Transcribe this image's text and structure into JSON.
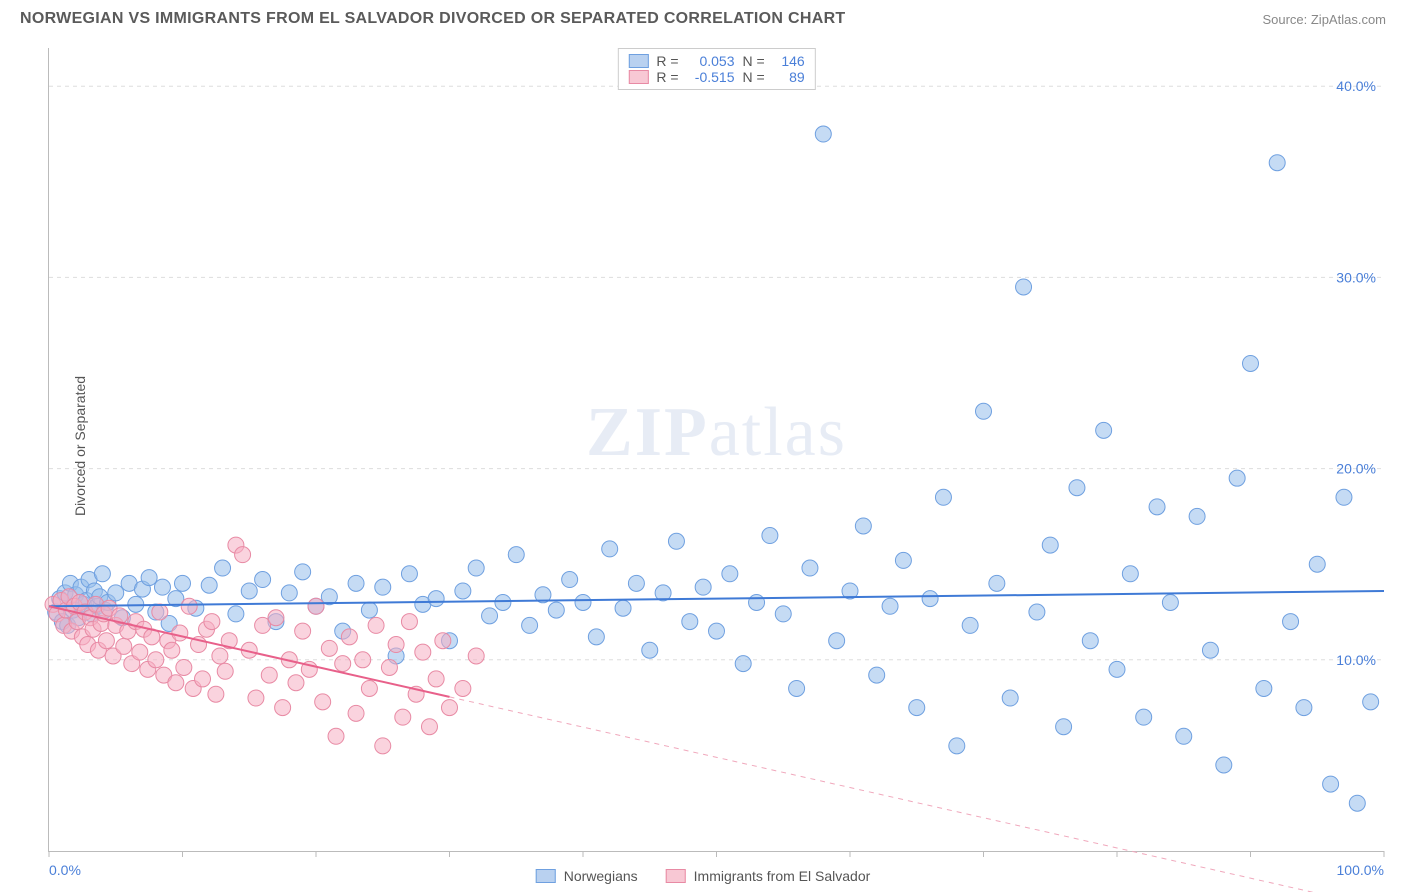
{
  "header": {
    "title": "NORWEGIAN VS IMMIGRANTS FROM EL SALVADOR DIVORCED OR SEPARATED CORRELATION CHART",
    "source": "Source: ZipAtlas.com"
  },
  "axes": {
    "ylabel": "Divorced or Separated",
    "xmin": 0.0,
    "xmax": 100.0,
    "ymin": 0.0,
    "ymax": 42.0,
    "yticks": [
      10.0,
      20.0,
      30.0,
      40.0
    ],
    "ytick_labels": [
      "10.0%",
      "20.0%",
      "30.0%",
      "40.0%"
    ],
    "xticks": [
      0,
      10,
      20,
      30,
      40,
      50,
      60,
      70,
      80,
      90,
      100
    ],
    "xtick_labels_shown": {
      "0": "0.0%",
      "100": "100.0%"
    },
    "grid_color": "#dddddd",
    "axis_color": "#bbbbbb",
    "tick_label_color": "#4a7fd8"
  },
  "watermark": {
    "zip": "ZIP",
    "atlas": "atlas"
  },
  "legend_top": {
    "rows": [
      {
        "swatch_fill": "#b9d1f0",
        "swatch_border": "#6fa0e0",
        "r_label": "R =",
        "r_val": "0.053",
        "n_label": "N =",
        "n_val": "146"
      },
      {
        "swatch_fill": "#f8c8d4",
        "swatch_border": "#e88aa4",
        "r_label": "R =",
        "r_val": "-0.515",
        "n_label": "N =",
        "n_val": "89"
      }
    ]
  },
  "legend_bottom": {
    "items": [
      {
        "swatch_fill": "#b9d1f0",
        "swatch_border": "#6fa0e0",
        "label": "Norwegians"
      },
      {
        "swatch_fill": "#f8c8d4",
        "swatch_border": "#e88aa4",
        "label": "Immigrants from El Salvador"
      }
    ]
  },
  "series": [
    {
      "name": "norwegians",
      "marker_fill": "rgba(150,190,235,0.55)",
      "marker_stroke": "#6fa0e0",
      "marker_r": 8,
      "trend": {
        "x1": 0,
        "y1": 12.8,
        "x2": 100,
        "y2": 13.6,
        "solid_until_x": 100,
        "color": "#3f7ad6",
        "width": 2
      },
      "points": [
        [
          0.5,
          12.5
        ],
        [
          0.8,
          13.2
        ],
        [
          1.0,
          12.0
        ],
        [
          1.2,
          13.5
        ],
        [
          1.4,
          11.8
        ],
        [
          1.6,
          14.0
        ],
        [
          1.8,
          12.6
        ],
        [
          2.0,
          13.4
        ],
        [
          2.2,
          12.2
        ],
        [
          2.4,
          13.8
        ],
        [
          2.6,
          12.9
        ],
        [
          2.8,
          13.1
        ],
        [
          3.0,
          14.2
        ],
        [
          3.2,
          12.4
        ],
        [
          3.4,
          13.6
        ],
        [
          3.6,
          12.8
        ],
        [
          3.8,
          13.3
        ],
        [
          4.0,
          14.5
        ],
        [
          4.2,
          12.6
        ],
        [
          4.4,
          13.0
        ],
        [
          5,
          13.5
        ],
        [
          5.5,
          12.2
        ],
        [
          6,
          14.0
        ],
        [
          6.5,
          12.9
        ],
        [
          7,
          13.7
        ],
        [
          7.5,
          14.3
        ],
        [
          8,
          12.5
        ],
        [
          8.5,
          13.8
        ],
        [
          9,
          11.9
        ],
        [
          9.5,
          13.2
        ],
        [
          10,
          14.0
        ],
        [
          11,
          12.7
        ],
        [
          12,
          13.9
        ],
        [
          13,
          14.8
        ],
        [
          14,
          12.4
        ],
        [
          15,
          13.6
        ],
        [
          16,
          14.2
        ],
        [
          17,
          12.0
        ],
        [
          18,
          13.5
        ],
        [
          19,
          14.6
        ],
        [
          20,
          12.8
        ],
        [
          21,
          13.3
        ],
        [
          22,
          11.5
        ],
        [
          23,
          14.0
        ],
        [
          24,
          12.6
        ],
        [
          25,
          13.8
        ],
        [
          26,
          10.2
        ],
        [
          27,
          14.5
        ],
        [
          28,
          12.9
        ],
        [
          29,
          13.2
        ],
        [
          30,
          11.0
        ],
        [
          31,
          13.6
        ],
        [
          32,
          14.8
        ],
        [
          33,
          12.3
        ],
        [
          34,
          13.0
        ],
        [
          35,
          15.5
        ],
        [
          36,
          11.8
        ],
        [
          37,
          13.4
        ],
        [
          38,
          12.6
        ],
        [
          39,
          14.2
        ],
        [
          40,
          13.0
        ],
        [
          41,
          11.2
        ],
        [
          42,
          15.8
        ],
        [
          43,
          12.7
        ],
        [
          44,
          14.0
        ],
        [
          45,
          10.5
        ],
        [
          46,
          13.5
        ],
        [
          47,
          16.2
        ],
        [
          48,
          12.0
        ],
        [
          49,
          13.8
        ],
        [
          50,
          11.5
        ],
        [
          51,
          14.5
        ],
        [
          52,
          9.8
        ],
        [
          53,
          13.0
        ],
        [
          54,
          16.5
        ],
        [
          55,
          12.4
        ],
        [
          56,
          8.5
        ],
        [
          57,
          14.8
        ],
        [
          58,
          37.5
        ],
        [
          59,
          11.0
        ],
        [
          60,
          13.6
        ],
        [
          61,
          17.0
        ],
        [
          62,
          9.2
        ],
        [
          63,
          12.8
        ],
        [
          64,
          15.2
        ],
        [
          65,
          7.5
        ],
        [
          66,
          13.2
        ],
        [
          67,
          18.5
        ],
        [
          68,
          5.5
        ],
        [
          69,
          11.8
        ],
        [
          70,
          23.0
        ],
        [
          71,
          14.0
        ],
        [
          72,
          8.0
        ],
        [
          73,
          29.5
        ],
        [
          74,
          12.5
        ],
        [
          75,
          16.0
        ],
        [
          76,
          6.5
        ],
        [
          77,
          19.0
        ],
        [
          78,
          11.0
        ],
        [
          79,
          22.0
        ],
        [
          80,
          9.5
        ],
        [
          81,
          14.5
        ],
        [
          82,
          7.0
        ],
        [
          83,
          18.0
        ],
        [
          84,
          13.0
        ],
        [
          85,
          6.0
        ],
        [
          86,
          17.5
        ],
        [
          87,
          10.5
        ],
        [
          88,
          4.5
        ],
        [
          89,
          19.5
        ],
        [
          90,
          25.5
        ],
        [
          91,
          8.5
        ],
        [
          92,
          36.0
        ],
        [
          93,
          12.0
        ],
        [
          94,
          7.5
        ],
        [
          95,
          15.0
        ],
        [
          96,
          3.5
        ],
        [
          97,
          18.5
        ],
        [
          98,
          2.5
        ],
        [
          99,
          7.8
        ]
      ]
    },
    {
      "name": "el_salvador",
      "marker_fill": "rgba(245,175,195,0.55)",
      "marker_stroke": "#e88aa4",
      "marker_r": 8,
      "trend": {
        "x1": 0,
        "y1": 12.8,
        "x2": 100,
        "y2": -3.0,
        "solid_until_x": 30,
        "color": "#e8608a",
        "width": 2,
        "dash_color": "#f0a8bc"
      },
      "points": [
        [
          0.3,
          12.9
        ],
        [
          0.6,
          12.4
        ],
        [
          0.9,
          13.1
        ],
        [
          1.1,
          11.8
        ],
        [
          1.3,
          12.6
        ],
        [
          1.5,
          13.3
        ],
        [
          1.7,
          11.5
        ],
        [
          1.9,
          12.8
        ],
        [
          2.1,
          12.0
        ],
        [
          2.3,
          13.0
        ],
        [
          2.5,
          11.2
        ],
        [
          2.7,
          12.5
        ],
        [
          2.9,
          10.8
        ],
        [
          3.1,
          12.2
        ],
        [
          3.3,
          11.6
        ],
        [
          3.5,
          12.9
        ],
        [
          3.7,
          10.5
        ],
        [
          3.9,
          11.9
        ],
        [
          4.1,
          12.4
        ],
        [
          4.3,
          11.0
        ],
        [
          4.5,
          12.7
        ],
        [
          4.8,
          10.2
        ],
        [
          5.0,
          11.8
        ],
        [
          5.3,
          12.3
        ],
        [
          5.6,
          10.7
        ],
        [
          5.9,
          11.5
        ],
        [
          6.2,
          9.8
        ],
        [
          6.5,
          12.0
        ],
        [
          6.8,
          10.4
        ],
        [
          7.1,
          11.6
        ],
        [
          7.4,
          9.5
        ],
        [
          7.7,
          11.2
        ],
        [
          8.0,
          10.0
        ],
        [
          8.3,
          12.5
        ],
        [
          8.6,
          9.2
        ],
        [
          8.9,
          11.0
        ],
        [
          9.2,
          10.5
        ],
        [
          9.5,
          8.8
        ],
        [
          9.8,
          11.4
        ],
        [
          10.1,
          9.6
        ],
        [
          10.5,
          12.8
        ],
        [
          10.8,
          8.5
        ],
        [
          11.2,
          10.8
        ],
        [
          11.5,
          9.0
        ],
        [
          11.8,
          11.6
        ],
        [
          12.2,
          12.0
        ],
        [
          12.5,
          8.2
        ],
        [
          12.8,
          10.2
        ],
        [
          13.2,
          9.4
        ],
        [
          13.5,
          11.0
        ],
        [
          14,
          16.0
        ],
        [
          14.5,
          15.5
        ],
        [
          15,
          10.5
        ],
        [
          15.5,
          8.0
        ],
        [
          16,
          11.8
        ],
        [
          16.5,
          9.2
        ],
        [
          17,
          12.2
        ],
        [
          17.5,
          7.5
        ],
        [
          18,
          10.0
        ],
        [
          18.5,
          8.8
        ],
        [
          19,
          11.5
        ],
        [
          19.5,
          9.5
        ],
        [
          20,
          12.8
        ],
        [
          20.5,
          7.8
        ],
        [
          21,
          10.6
        ],
        [
          21.5,
          6.0
        ],
        [
          22,
          9.8
        ],
        [
          22.5,
          11.2
        ],
        [
          23,
          7.2
        ],
        [
          23.5,
          10.0
        ],
        [
          24,
          8.5
        ],
        [
          24.5,
          11.8
        ],
        [
          25,
          5.5
        ],
        [
          25.5,
          9.6
        ],
        [
          26,
          10.8
        ],
        [
          26.5,
          7.0
        ],
        [
          27,
          12.0
        ],
        [
          27.5,
          8.2
        ],
        [
          28,
          10.4
        ],
        [
          28.5,
          6.5
        ],
        [
          29,
          9.0
        ],
        [
          29.5,
          11.0
        ],
        [
          30,
          7.5
        ],
        [
          31,
          8.5
        ],
        [
          32,
          10.2
        ]
      ]
    }
  ],
  "plot_bg": "#ffffff"
}
